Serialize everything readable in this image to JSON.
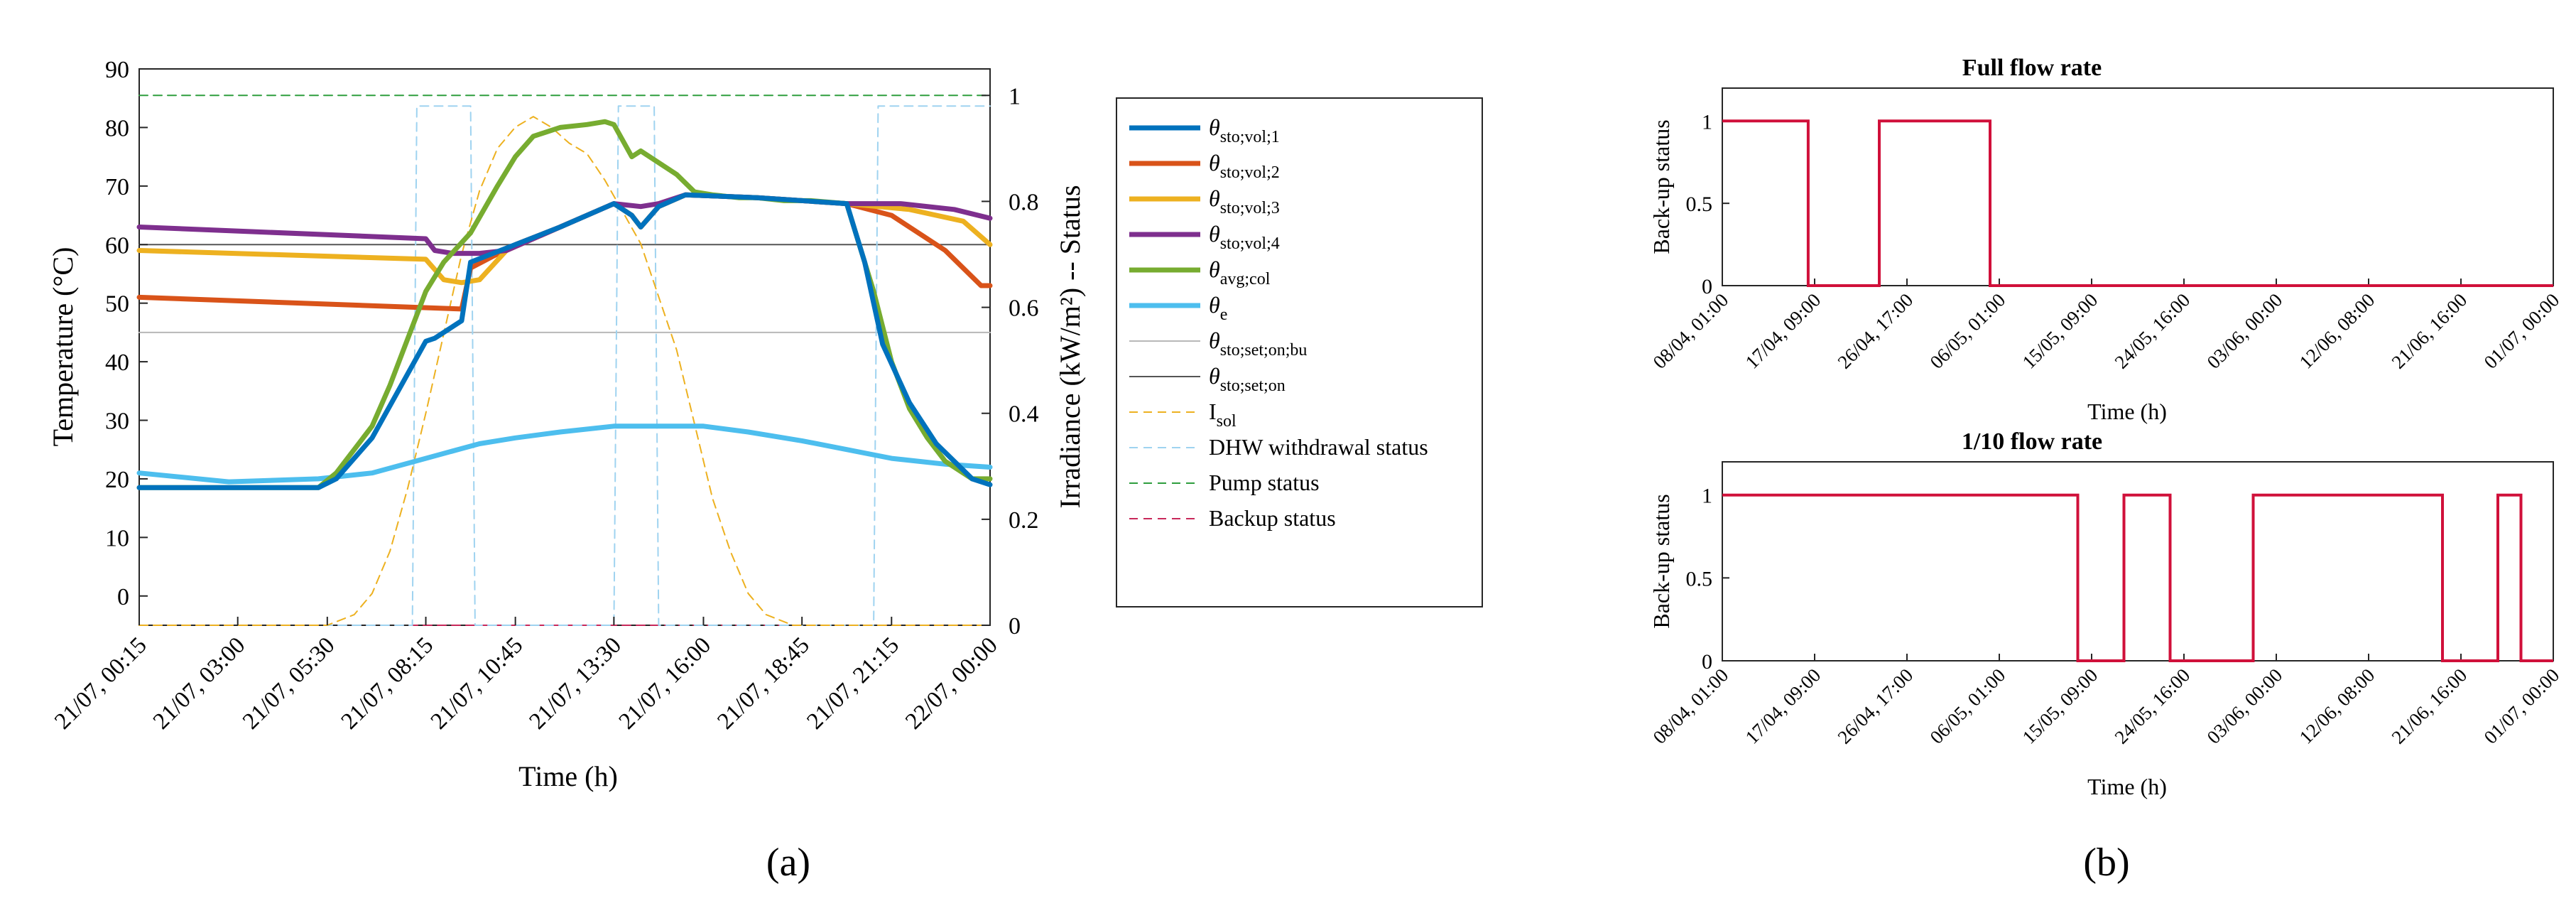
{
  "panel_labels": {
    "a": "(a)",
    "b": "(b)"
  },
  "chart_data": [
    {
      "id": "a",
      "type": "line",
      "xlabel": "Time (h)",
      "ylabel": "Temperature (°C)",
      "y2label": "Irradiance (kW/m²) -- Status",
      "ylim": [
        -5,
        90
      ],
      "y2lim": [
        0,
        1.05
      ],
      "xlim": [
        0,
        95
      ],
      "xticks": [
        0,
        11,
        21,
        32,
        42,
        53,
        63,
        74,
        84,
        95
      ],
      "xtick_labels": [
        "21/07, 00:15",
        "21/07, 03:00",
        "21/07, 05:30",
        "21/07, 08:15",
        "21/07, 10:45",
        "21/07, 13:30",
        "21/07, 16:00",
        "21/07, 18:45",
        "21/07, 21:15",
        "22/07, 00:00"
      ],
      "yticks": [
        0,
        10,
        20,
        30,
        40,
        50,
        60,
        70,
        80,
        90
      ],
      "y2ticks": [
        0,
        0.2,
        0.4,
        0.6,
        0.8,
        1
      ],
      "y2tick_labels": [
        "0",
        "0.2",
        "0.4",
        "0.6",
        "0.8",
        "1"
      ],
      "legend": [
        {
          "key": "vol1",
          "label": "θsto;vol;1",
          "sym": "θ",
          "sub": "sto;vol;1",
          "color": "#0072BD",
          "width": 7,
          "dash": ""
        },
        {
          "key": "vol2",
          "label": "θsto;vol;2",
          "sym": "θ",
          "sub": "sto;vol;2",
          "color": "#D95319",
          "width": 7,
          "dash": ""
        },
        {
          "key": "vol3",
          "label": "θsto;vol;3",
          "sym": "θ",
          "sub": "sto;vol;3",
          "color": "#EDB120",
          "width": 7,
          "dash": ""
        },
        {
          "key": "vol4",
          "label": "θsto;vol;4",
          "sym": "θ",
          "sub": "sto;vol;4",
          "color": "#7E2F8E",
          "width": 7,
          "dash": ""
        },
        {
          "key": "col",
          "label": "θavg;col",
          "sym": "θ",
          "sub": "avg;col",
          "color": "#77AC30",
          "width": 7,
          "dash": ""
        },
        {
          "key": "e",
          "label": "θe",
          "sym": "θ",
          "sub": "e",
          "color": "#4DBEEE",
          "width": 7,
          "dash": ""
        },
        {
          "key": "setbu",
          "label": "θsto;set;on;bu",
          "sym": "θ",
          "sub": "sto;set;on;bu",
          "color": "#b8b8b8",
          "width": 2,
          "dash": ""
        },
        {
          "key": "seton",
          "label": "θsto;set;on",
          "sym": "θ",
          "sub": "sto;set;on",
          "color": "#555555",
          "width": 2,
          "dash": ""
        },
        {
          "key": "isol",
          "label": "Isol",
          "sym": "I",
          "sub": "sol",
          "color": "#EDB120",
          "width": 2,
          "dash": "12,8"
        },
        {
          "key": "dhw",
          "label": "DHW withdrawal status",
          "sym": "DHW withdrawal status",
          "sub": "",
          "color": "#9fd3f0",
          "width": 2,
          "dash": "12,8"
        },
        {
          "key": "pump",
          "label": "Pump status",
          "sym": "Pump status",
          "sub": "",
          "color": "#2e9e3e",
          "width": 2,
          "dash": "12,8"
        },
        {
          "key": "backup",
          "label": "Backup status",
          "sym": "Backup status",
          "sub": "",
          "color": "#c8285a",
          "width": 2,
          "dash": "12,8"
        }
      ],
      "series": [
        {
          "name": "θsto;vol;1",
          "key": "vol1",
          "axis": "left",
          "x": [
            0,
            20,
            22,
            26,
            32,
            33,
            36,
            37,
            42,
            47,
            53,
            55,
            56,
            58,
            61,
            69,
            79,
            81,
            83,
            86,
            89,
            93,
            95
          ],
          "y": [
            18.5,
            18.5,
            20,
            27,
            43.5,
            44,
            47,
            57,
            60,
            63,
            67,
            65,
            63,
            66.5,
            68.5,
            68,
            67,
            57,
            43,
            33,
            26,
            20,
            19
          ]
        },
        {
          "name": "θsto;vol;2",
          "key": "vol2",
          "axis": "left",
          "x": [
            0,
            36,
            37,
            42,
            47,
            53,
            55,
            56,
            58,
            61,
            69,
            79,
            84,
            90,
            94,
            95
          ],
          "y": [
            51,
            49,
            56,
            60,
            63,
            67,
            65,
            63,
            66.5,
            68.5,
            68,
            67,
            65,
            59,
            53,
            53
          ]
        },
        {
          "name": "θsto;vol;3",
          "key": "vol3",
          "axis": "left",
          "x": [
            0,
            32,
            34,
            36,
            38,
            41,
            47,
            53,
            55,
            56,
            58,
            61,
            69,
            79,
            86,
            92,
            95
          ],
          "y": [
            59,
            57.5,
            54,
            53.5,
            54,
            59,
            63,
            67,
            65,
            63,
            66.5,
            68.5,
            68,
            67,
            66,
            64,
            60
          ]
        },
        {
          "name": "θsto;vol;4",
          "key": "vol4",
          "axis": "left",
          "x": [
            0,
            32,
            33,
            35,
            38,
            41,
            47,
            53,
            56,
            58,
            61,
            69,
            79,
            85,
            91,
            95
          ],
          "y": [
            63,
            61,
            59,
            58.5,
            58.5,
            59,
            63,
            67,
            66.5,
            67,
            68.5,
            68,
            67,
            67,
            66,
            64.5
          ]
        },
        {
          "name": "θavg;col",
          "key": "col",
          "axis": "left",
          "x": [
            0,
            20,
            22,
            24,
            26,
            28,
            30,
            32,
            34,
            37,
            40,
            42,
            44,
            47,
            50,
            52,
            53,
            55,
            56,
            58,
            60,
            62,
            64,
            67,
            69,
            72,
            75,
            79,
            80,
            82,
            84,
            86,
            88,
            90,
            93,
            95
          ],
          "y": [
            18.5,
            18.5,
            21,
            25,
            29,
            36,
            44,
            52,
            57,
            62,
            70,
            75,
            78.5,
            80,
            80.5,
            81,
            80.5,
            75,
            76,
            74,
            72,
            69,
            68.5,
            68,
            68,
            67.5,
            67.5,
            67,
            62,
            52,
            40,
            32,
            27,
            23,
            20,
            20
          ]
        },
        {
          "name": "θe",
          "key": "e",
          "axis": "left",
          "x": [
            0,
            10,
            20,
            26,
            32,
            38,
            42,
            47,
            53,
            58,
            63,
            68,
            74,
            79,
            84,
            90,
            95
          ],
          "y": [
            21,
            19.5,
            20,
            21,
            23.5,
            26,
            27,
            28,
            29,
            29,
            29,
            28,
            26.5,
            25,
            23.5,
            22.5,
            22
          ]
        },
        {
          "name": "θsto;set;on;bu",
          "key": "setbu",
          "axis": "left",
          "x": [
            0,
            95
          ],
          "y": [
            45,
            45
          ]
        },
        {
          "name": "θsto;set;on",
          "key": "seton",
          "axis": "left",
          "x": [
            0,
            95
          ],
          "y": [
            60,
            60
          ]
        },
        {
          "name": "Isol",
          "key": "isol",
          "axis": "right",
          "x": [
            0,
            21,
            24,
            26,
            28,
            30,
            32,
            34,
            36,
            38,
            40,
            42,
            44,
            46,
            48,
            50,
            52,
            54,
            56,
            58,
            60,
            62,
            64,
            66,
            68,
            70,
            73,
            95
          ],
          "y": [
            0,
            0,
            0.02,
            0.06,
            0.14,
            0.26,
            0.4,
            0.55,
            0.7,
            0.82,
            0.9,
            0.94,
            0.96,
            0.94,
            0.91,
            0.89,
            0.84,
            0.78,
            0.72,
            0.62,
            0.52,
            0.38,
            0.24,
            0.14,
            0.06,
            0.02,
            0,
            0
          ]
        },
        {
          "name": "DHW withdrawal status",
          "key": "dhw",
          "axis": "right",
          "x": [
            0,
            30.5,
            31,
            32,
            33,
            34,
            36,
            37,
            37.5,
            53,
            53.5,
            54,
            55,
            56,
            57,
            57.5,
            58,
            82,
            82.5,
            83,
            95
          ],
          "y": [
            0,
            0,
            0.98,
            0.98,
            0.98,
            0.98,
            0.98,
            0.98,
            0,
            0,
            0.98,
            0.98,
            0.98,
            0.98,
            0.98,
            0.98,
            0,
            0,
            0.98,
            0.98,
            0.98
          ]
        },
        {
          "name": "Pump status",
          "key": "pump",
          "axis": "right",
          "x": [
            0,
            95
          ],
          "y": [
            1,
            1
          ]
        },
        {
          "name": "Backup status",
          "key": "backup",
          "axis": "right",
          "x": [
            0,
            95
          ],
          "y": [
            0,
            0
          ]
        }
      ]
    },
    {
      "id": "b1",
      "type": "line",
      "title": "Full flow rate",
      "xlabel": "Time (h)",
      "ylabel": "Back-up status",
      "ylim": [
        0,
        1.2
      ],
      "yticks": [
        0,
        0.5,
        1
      ],
      "ytick_labels": [
        "0",
        "0.5",
        "1"
      ],
      "xlim": [
        0,
        9
      ],
      "xtick_labels": [
        "08/04, 01:00",
        "17/04, 09:00",
        "26/04, 17:00",
        "06/05, 01:00",
        "15/05, 09:00",
        "24/05, 16:00",
        "03/06, 00:00",
        "12/06, 08:00",
        "21/06, 16:00",
        "01/07, 00:00"
      ],
      "color": "#D0103A",
      "series": [
        {
          "name": "Back-up status",
          "x": [
            0,
            0.93,
            0.93,
            1.7,
            1.7,
            2.9,
            2.9,
            9
          ],
          "y": [
            1,
            1,
            0,
            0,
            1,
            1,
            0,
            0
          ]
        }
      ]
    },
    {
      "id": "b2",
      "type": "line",
      "title": "1/10 flow rate",
      "xlabel": "Time (h)",
      "ylabel": "Back-up status",
      "ylim": [
        0,
        1.2
      ],
      "yticks": [
        0,
        0.5,
        1
      ],
      "ytick_labels": [
        "0",
        "0.5",
        "1"
      ],
      "xlim": [
        0,
        9
      ],
      "xtick_labels": [
        "08/04, 01:00",
        "17/04, 09:00",
        "26/04, 17:00",
        "06/05, 01:00",
        "15/05, 09:00",
        "24/05, 16:00",
        "03/06, 00:00",
        "12/06, 08:00",
        "21/06, 16:00",
        "01/07, 00:00"
      ],
      "color": "#D0103A",
      "series": [
        {
          "name": "Back-up status",
          "x": [
            0,
            3.85,
            3.85,
            4.35,
            4.35,
            4.85,
            4.85,
            5.75,
            5.75,
            7.8,
            7.8,
            8.4,
            8.4,
            8.65,
            8.65,
            9
          ],
          "y": [
            1,
            1,
            0,
            0,
            1,
            1,
            0,
            0,
            1,
            1,
            0,
            0,
            1,
            1,
            0,
            0
          ]
        }
      ]
    }
  ]
}
